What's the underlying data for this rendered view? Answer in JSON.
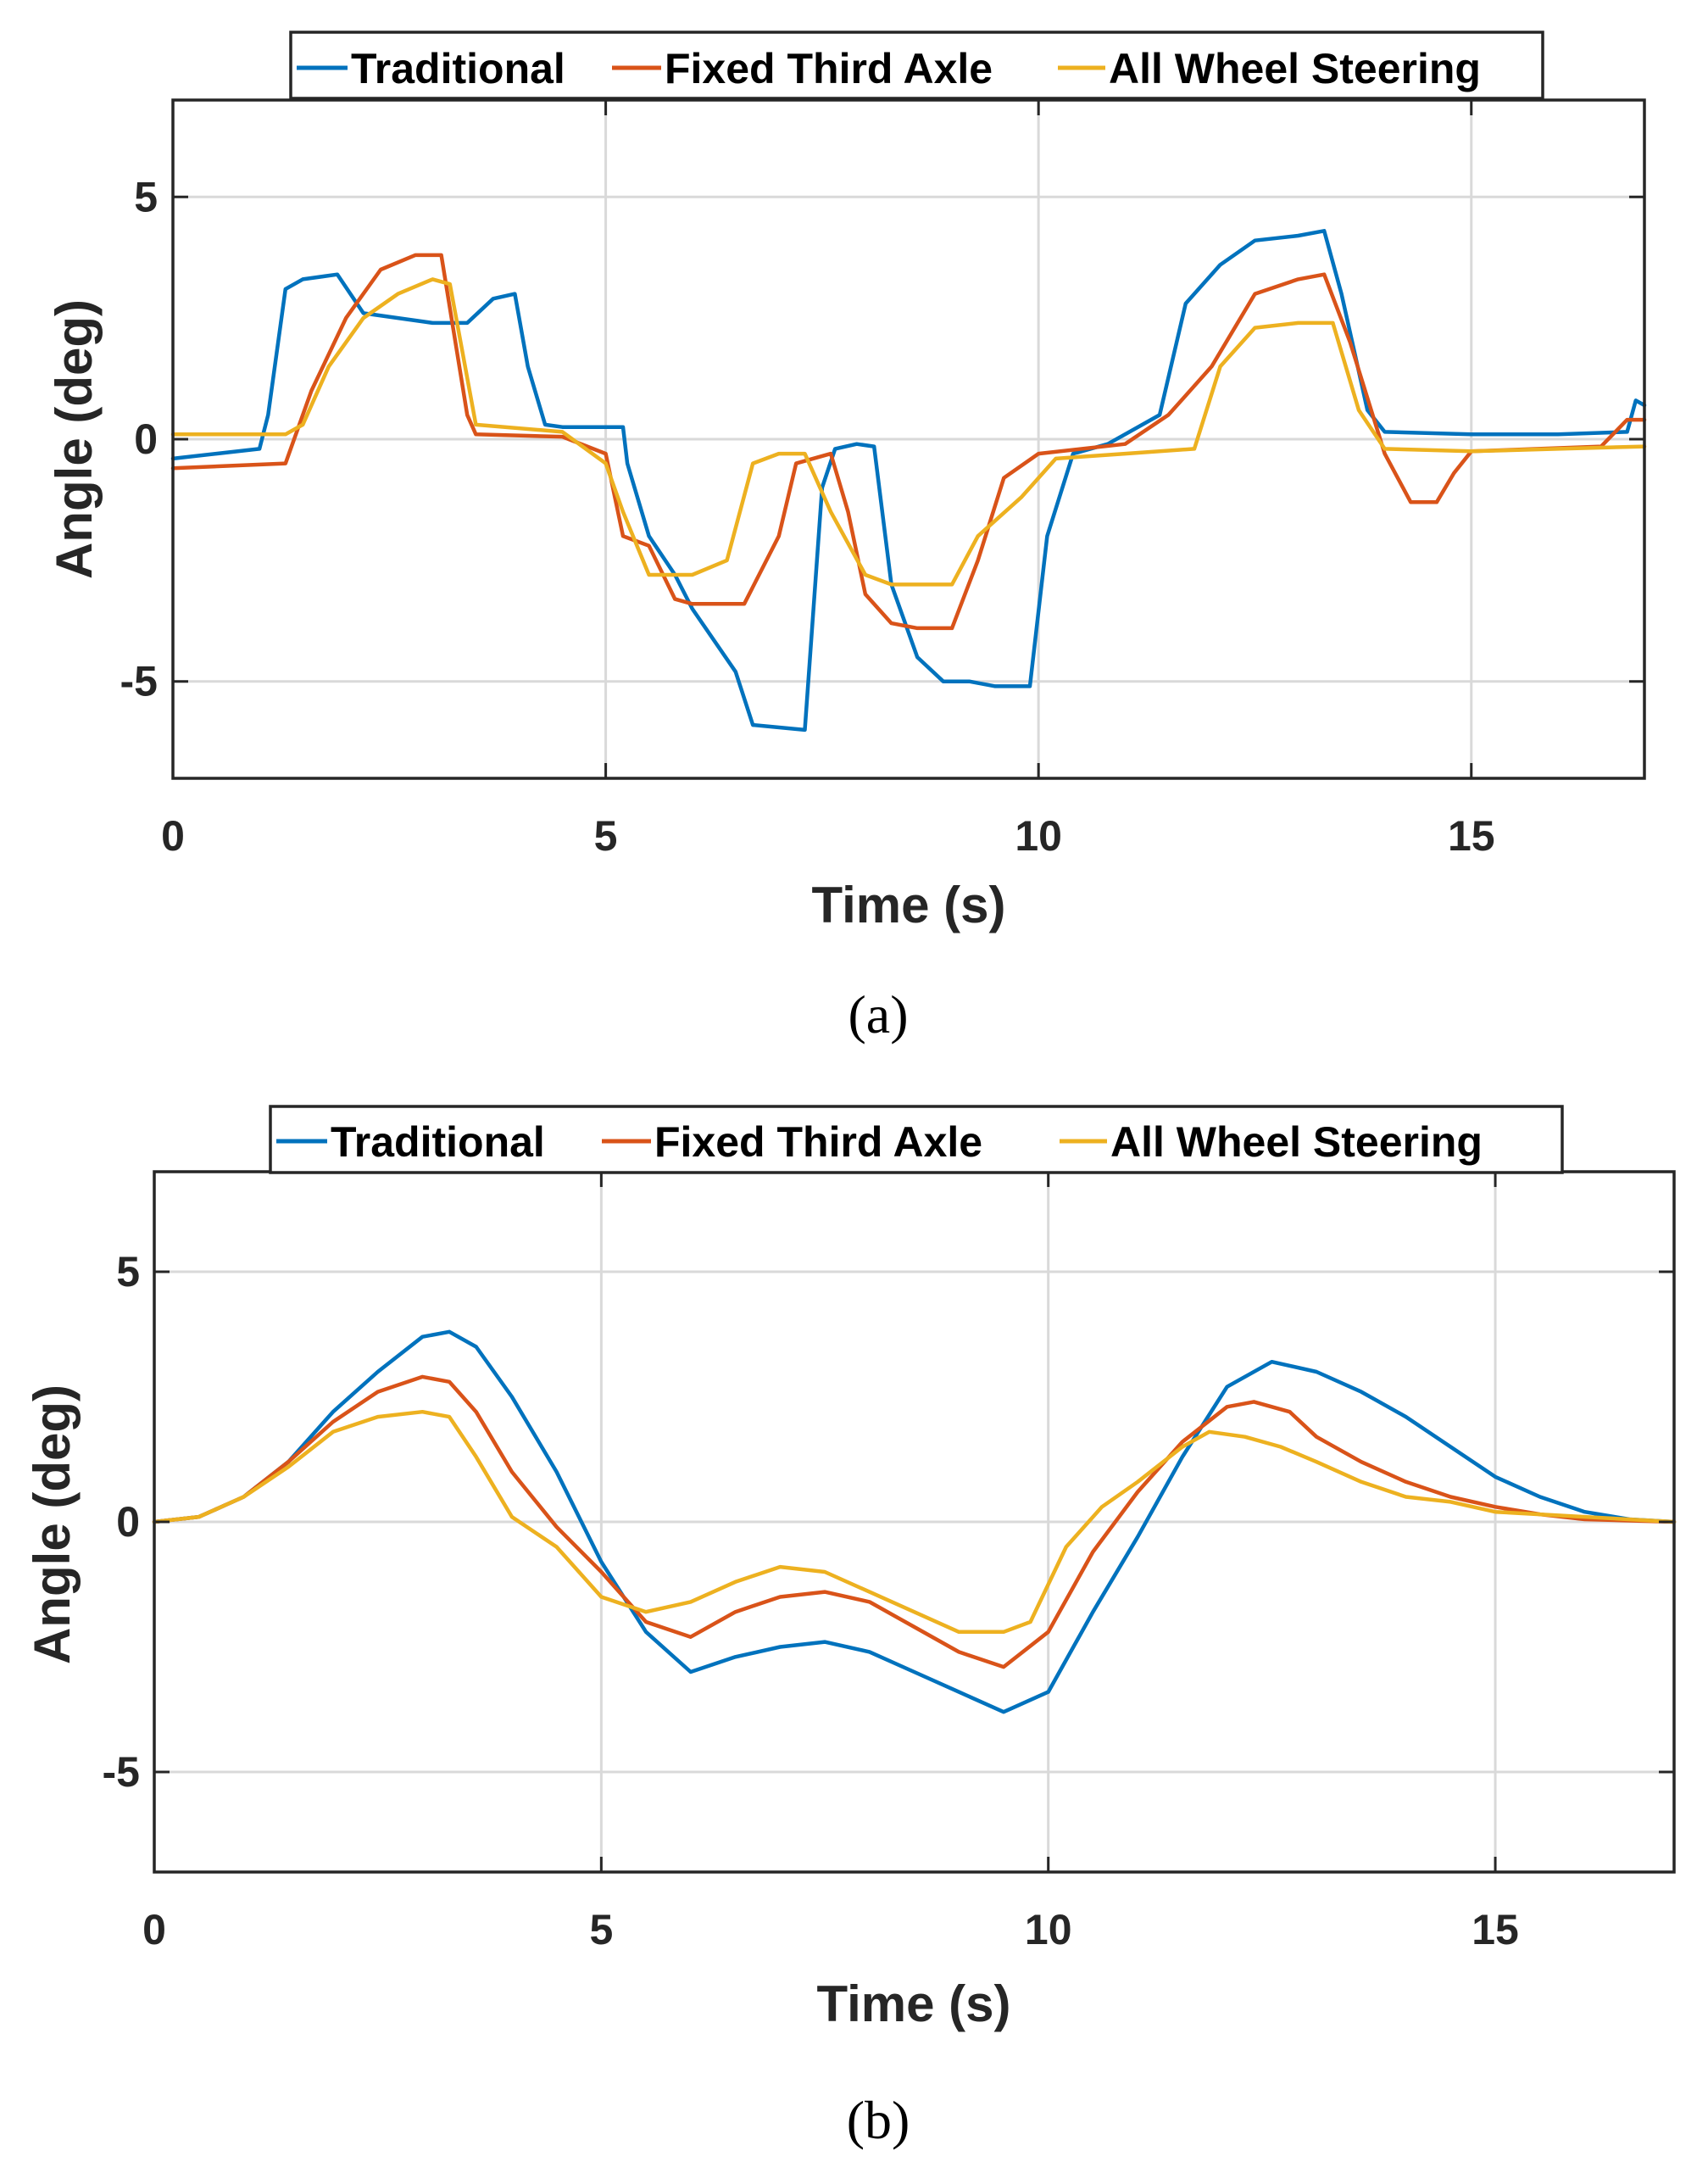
{
  "colors": {
    "Traditional": "#0072BD",
    "Fixed Third Axle": "#D95319",
    "All Wheel Steering": "#EDB120"
  },
  "chart_data": [
    {
      "type": "line",
      "caption": "(a)",
      "xlabel": "Time (s)",
      "ylabel": "Angle (deg)",
      "xlim": [
        0,
        17
      ],
      "ylim": [
        -7,
        7
      ],
      "xticks": [
        0,
        5,
        10,
        15
      ],
      "xtick_labels": [
        "0",
        "5",
        "10",
        "15"
      ],
      "yticks": [
        -5,
        0,
        5
      ],
      "ytick_labels": [
        "-5",
        "0",
        "5"
      ],
      "grid": true,
      "legend": {
        "position": "top-center",
        "orientation": "horizontal"
      },
      "series": [
        {
          "name": "Traditional",
          "x": [
            0,
            0.5,
            1.0,
            1.1,
            1.3,
            1.5,
            1.9,
            2.2,
            2.6,
            3.0,
            3.4,
            3.7,
            3.95,
            4.1,
            4.3,
            4.5,
            5.2,
            5.25,
            5.5,
            5.8,
            6.0,
            6.5,
            6.7,
            7.3,
            7.5,
            7.65,
            7.9,
            8.1,
            8.3,
            8.6,
            8.9,
            9.2,
            9.5,
            9.9,
            10.1,
            10.4,
            10.8,
            11.4,
            11.7,
            12.1,
            12.5,
            13.0,
            13.3,
            13.5,
            13.8,
            14.0,
            15.0,
            16.0,
            16.8,
            16.9,
            17.0
          ],
          "y": [
            -0.4,
            -0.3,
            -0.2,
            0.5,
            3.1,
            3.3,
            3.4,
            2.6,
            2.5,
            2.4,
            2.4,
            2.9,
            3.0,
            1.5,
            0.3,
            0.25,
            0.25,
            -0.5,
            -2.0,
            -2.8,
            -3.5,
            -4.8,
            -5.9,
            -6.0,
            -1.0,
            -0.2,
            -0.1,
            -0.15,
            -3.0,
            -4.5,
            -5.0,
            -5.0,
            -5.1,
            -5.1,
            -2.0,
            -0.3,
            -0.1,
            0.5,
            2.8,
            3.6,
            4.1,
            4.2,
            4.3,
            3.0,
            0.6,
            0.15,
            0.1,
            0.1,
            0.15,
            0.8,
            0.7
          ]
        },
        {
          "name": "Fixed Third Axle",
          "x": [
            0,
            1.3,
            1.6,
            2.0,
            2.4,
            2.8,
            3.1,
            3.4,
            3.5,
            4.5,
            5.0,
            5.2,
            5.5,
            5.8,
            6.0,
            6.6,
            7.0,
            7.2,
            7.6,
            7.8,
            8.0,
            8.3,
            8.6,
            9.0,
            9.3,
            9.6,
            10.0,
            11.0,
            11.5,
            12.0,
            12.5,
            13.0,
            13.3,
            13.6,
            14.0,
            14.3,
            14.6,
            14.8,
            15.0,
            16.5,
            16.8,
            17.0
          ],
          "y": [
            -0.6,
            -0.5,
            1.0,
            2.5,
            3.5,
            3.8,
            3.8,
            0.5,
            0.1,
            0.05,
            -0.3,
            -2.0,
            -2.2,
            -3.3,
            -3.4,
            -3.4,
            -2.0,
            -0.5,
            -0.3,
            -1.5,
            -3.2,
            -3.8,
            -3.9,
            -3.9,
            -2.5,
            -0.8,
            -0.3,
            -0.1,
            0.5,
            1.5,
            3.0,
            3.3,
            3.4,
            2.0,
            -0.3,
            -1.3,
            -1.3,
            -0.7,
            -0.25,
            -0.15,
            0.4,
            0.4
          ]
        },
        {
          "name": "All Wheel Steering",
          "x": [
            0,
            1.3,
            1.5,
            1.8,
            2.2,
            2.6,
            3.0,
            3.2,
            3.5,
            4.5,
            5.0,
            5.2,
            5.5,
            6.0,
            6.4,
            6.7,
            7.0,
            7.3,
            7.6,
            8.0,
            8.3,
            8.6,
            9.0,
            9.3,
            9.8,
            10.2,
            11.0,
            11.8,
            12.1,
            12.5,
            13.0,
            13.4,
            13.7,
            14.0,
            15.0,
            16.0,
            17.0
          ],
          "y": [
            0.1,
            0.1,
            0.3,
            1.5,
            2.5,
            3.0,
            3.3,
            3.2,
            0.3,
            0.15,
            -0.5,
            -1.5,
            -2.8,
            -2.8,
            -2.5,
            -0.5,
            -0.3,
            -0.3,
            -1.5,
            -2.8,
            -3.0,
            -3.0,
            -3.0,
            -2.0,
            -1.2,
            -0.4,
            -0.3,
            -0.2,
            1.5,
            2.3,
            2.4,
            2.4,
            0.6,
            -0.2,
            -0.25,
            -0.2,
            -0.15
          ]
        }
      ]
    },
    {
      "type": "line",
      "caption": "(b)",
      "xlabel": "Time (s)",
      "ylabel": "Angle (deg)",
      "xlim": [
        0,
        17
      ],
      "ylim": [
        -7,
        7
      ],
      "xticks": [
        0,
        5,
        10,
        15
      ],
      "xtick_labels": [
        "0",
        "5",
        "10",
        "15"
      ],
      "yticks": [
        -5,
        0,
        5
      ],
      "ytick_labels": [
        "-5",
        "0",
        "5"
      ],
      "grid": true,
      "legend": {
        "position": "top-center",
        "orientation": "horizontal"
      },
      "series": [
        {
          "name": "Traditional",
          "x": [
            0,
            0.5,
            1.0,
            1.5,
            2.0,
            2.5,
            3.0,
            3.3,
            3.6,
            4.0,
            4.5,
            5.0,
            5.5,
            6.0,
            6.5,
            7.0,
            7.5,
            8.0,
            8.5,
            9.0,
            9.5,
            10.0,
            10.5,
            11.0,
            11.5,
            12.0,
            12.5,
            13.0,
            13.5,
            14.0,
            14.5,
            15.0,
            15.5,
            16.0,
            16.5,
            17.0
          ],
          "y": [
            0,
            0.1,
            0.5,
            1.2,
            2.2,
            3.0,
            3.7,
            3.8,
            3.5,
            2.5,
            1.0,
            -0.8,
            -2.2,
            -3.0,
            -2.7,
            -2.5,
            -2.4,
            -2.6,
            -3.0,
            -3.4,
            -3.8,
            -3.4,
            -1.8,
            -0.3,
            1.3,
            2.7,
            3.2,
            3.0,
            2.6,
            2.1,
            1.5,
            0.9,
            0.5,
            0.2,
            0.05,
            0
          ]
        },
        {
          "name": "Fixed Third Axle",
          "x": [
            0,
            0.5,
            1.0,
            1.5,
            2.0,
            2.5,
            3.0,
            3.3,
            3.6,
            4.0,
            4.5,
            5.0,
            5.5,
            6.0,
            6.5,
            7.0,
            7.5,
            8.0,
            8.5,
            9.0,
            9.5,
            10.0,
            10.5,
            11.0,
            11.5,
            12.0,
            12.3,
            12.7,
            13.0,
            13.5,
            14.0,
            14.5,
            15.0,
            15.5,
            16.0,
            17.0
          ],
          "y": [
            0,
            0.1,
            0.5,
            1.2,
            2.0,
            2.6,
            2.9,
            2.8,
            2.2,
            1.0,
            -0.1,
            -1.0,
            -2.0,
            -2.3,
            -1.8,
            -1.5,
            -1.4,
            -1.6,
            -2.1,
            -2.6,
            -2.9,
            -2.2,
            -0.6,
            0.6,
            1.6,
            2.3,
            2.4,
            2.2,
            1.7,
            1.2,
            0.8,
            0.5,
            0.3,
            0.15,
            0.05,
            0
          ]
        },
        {
          "name": "All Wheel Steering",
          "x": [
            0,
            0.5,
            1.0,
            1.5,
            2.0,
            2.5,
            3.0,
            3.3,
            3.6,
            4.0,
            4.5,
            5.0,
            5.5,
            6.0,
            6.5,
            7.0,
            7.5,
            8.0,
            8.5,
            9.0,
            9.5,
            9.8,
            10.2,
            10.6,
            11.0,
            11.5,
            11.8,
            12.2,
            12.6,
            13.0,
            13.5,
            14.0,
            14.5,
            15.0,
            16.0,
            17.0
          ],
          "y": [
            0,
            0.1,
            0.5,
            1.1,
            1.8,
            2.1,
            2.2,
            2.1,
            1.3,
            0.1,
            -0.5,
            -1.5,
            -1.8,
            -1.6,
            -1.2,
            -0.9,
            -1.0,
            -1.4,
            -1.8,
            -2.2,
            -2.2,
            -2.0,
            -0.5,
            0.3,
            0.8,
            1.5,
            1.8,
            1.7,
            1.5,
            1.2,
            0.8,
            0.5,
            0.4,
            0.2,
            0.1,
            0
          ]
        }
      ]
    }
  ]
}
